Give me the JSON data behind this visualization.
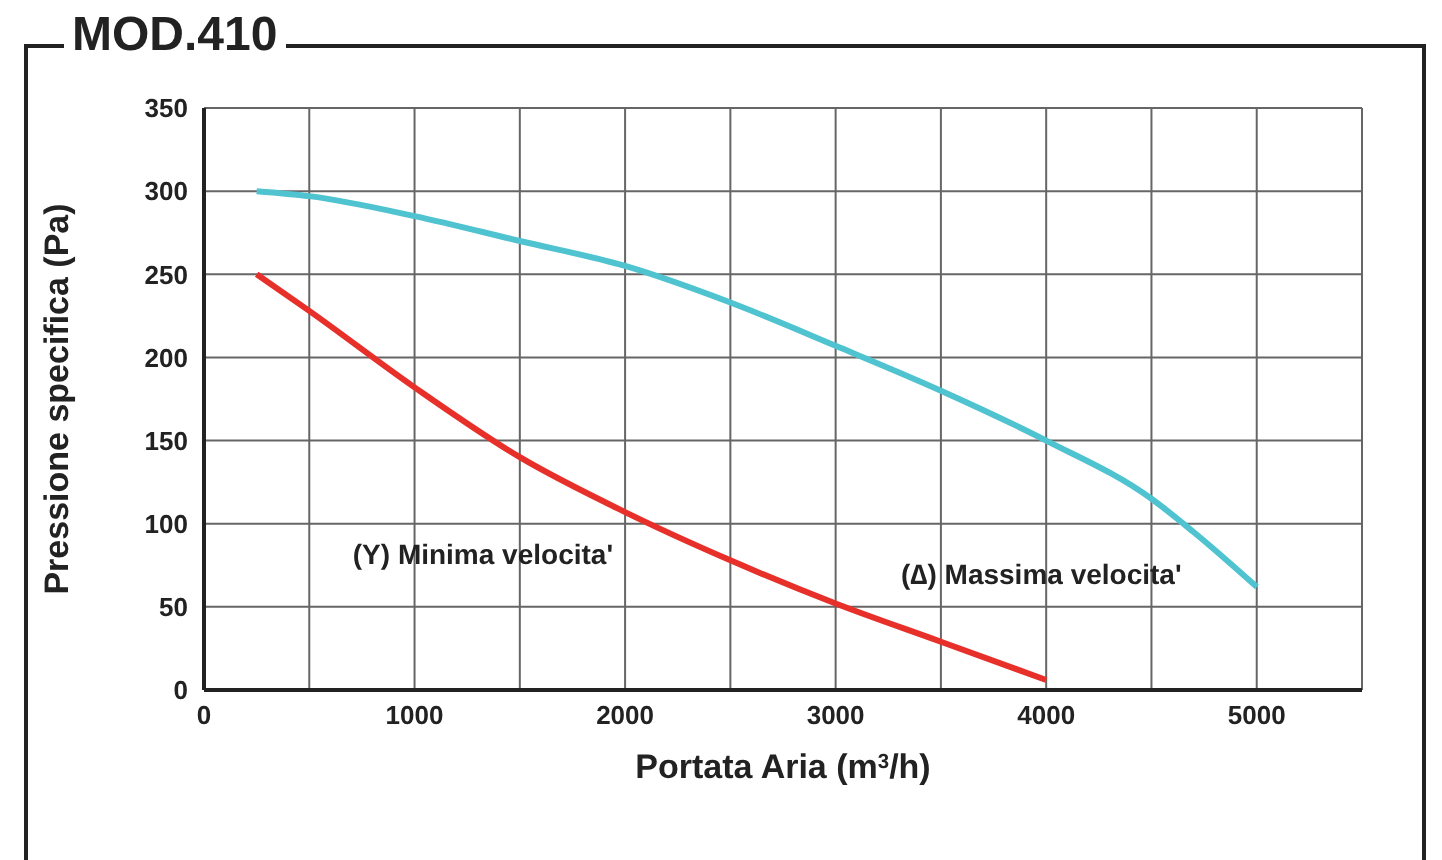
{
  "chart_data": {
    "type": "line",
    "title": "MOD.410",
    "xlabel": "Portata Aria (m$^{3}$/h)",
    "ylabel": "Pressione specifica (Pa)",
    "xlim": [
      0,
      5500
    ],
    "xticks": [
      0,
      {
        "value": 500,
        "label": null
      },
      1000,
      {
        "value": 1500,
        "label": null
      },
      2000,
      {
        "value": 2500,
        "label": null
      },
      3000,
      {
        "value": 3500,
        "label": null
      },
      4000,
      {
        "value": 4500,
        "label": null
      },
      5000,
      {
        "value": 5500,
        "label": null
      }
    ],
    "ylim": [
      0,
      350
    ],
    "yticks": [
      0,
      50,
      100,
      150,
      200,
      250,
      300,
      350
    ],
    "grid": true,
    "legend": false,
    "marker": "none",
    "line_style": "solid",
    "series": [
      {
        "name": "(Y) Minima velocita'",
        "color": "#e8302a",
        "x": [
          250,
          500,
          1000,
          1500,
          2000,
          2500,
          3000,
          3500,
          4000
        ],
        "values": [
          250,
          228,
          182,
          140,
          107,
          78,
          52,
          29,
          6
        ]
      },
      {
        "name": "(∆) Massima velocita'",
        "color": "#4fc3cf",
        "x": [
          250,
          500,
          1000,
          1500,
          2000,
          2500,
          3000,
          3500,
          4000,
          4500,
          4700,
          5000
        ],
        "values": [
          300,
          297,
          285,
          270,
          255,
          233,
          207,
          180,
          150,
          115,
          95,
          62
        ]
      }
    ]
  }
}
